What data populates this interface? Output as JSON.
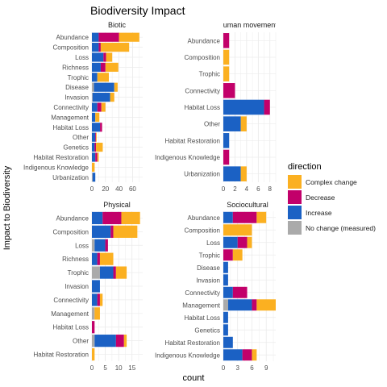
{
  "title": "Biodiversity Impact",
  "xlabel": "count",
  "ylabel": "Impact to Biodiversity",
  "legend": {
    "title": "direction",
    "items": [
      {
        "key": "complex",
        "label": "Complex change",
        "color": "#fbb021"
      },
      {
        "key": "decrease",
        "label": "Decrease",
        "color": "#c2006a"
      },
      {
        "key": "increase",
        "label": "Increase",
        "color": "#1b61c4"
      },
      {
        "key": "nochange",
        "label": "No change (measured)",
        "color": "#aaaaaa"
      }
    ]
  },
  "chart_data": [
    {
      "type": "bar",
      "orientation": "horizontal",
      "stacked": true,
      "title": "Biotic",
      "xlim": [
        0,
        75
      ],
      "xticks": [
        0,
        20,
        40,
        60
      ],
      "categories": [
        "Urbanization",
        "Indigenous Knowledge",
        "Habitat Restoration",
        "Genetics",
        "Other",
        "Habitat Loss",
        "Management",
        "Connectivity",
        "Invasion",
        "Disease",
        "Trophic",
        "Richness",
        "Loss",
        "Composition",
        "Abundance"
      ],
      "series": [
        {
          "name": "No change (measured)",
          "values": [
            1,
            0,
            0,
            0,
            0,
            0,
            0,
            0,
            1,
            3,
            0,
            0,
            0,
            0,
            0
          ]
        },
        {
          "name": "Increase",
          "values": [
            4,
            0,
            5,
            4,
            5,
            12,
            5,
            8,
            26,
            30,
            8,
            13,
            17,
            10,
            10
          ]
        },
        {
          "name": "Decrease",
          "values": [
            0,
            0,
            3,
            2,
            1,
            3,
            0,
            6,
            0,
            0,
            0,
            7,
            4,
            3,
            30
          ]
        },
        {
          "name": "Complex change",
          "values": [
            0,
            4,
            2,
            10,
            1,
            0,
            6,
            6,
            6,
            5,
            17,
            19,
            9,
            42,
            30
          ]
        }
      ]
    },
    {
      "type": "bar",
      "orientation": "horizontal",
      "stacked": true,
      "title": "Human movement",
      "xlim": [
        0,
        9
      ],
      "xticks": [
        0,
        2,
        4,
        6,
        8
      ],
      "categories": [
        "Urbanization",
        "Indigenous Knowledge",
        "Habitat Restoration",
        "Other",
        "Habitat Loss",
        "Connectivity",
        "Trophic",
        "Composition",
        "Abundance"
      ],
      "series": [
        {
          "name": "No change (measured)",
          "values": [
            0,
            0,
            0,
            0,
            0,
            0,
            0,
            0,
            0
          ]
        },
        {
          "name": "Increase",
          "values": [
            3,
            0,
            1,
            3,
            7,
            0,
            0,
            0,
            0
          ]
        },
        {
          "name": "Decrease",
          "values": [
            0,
            1,
            0,
            0,
            1,
            2,
            0,
            0,
            1
          ]
        },
        {
          "name": "Complex change",
          "values": [
            1,
            0,
            0,
            1,
            0,
            0,
            1,
            1,
            0
          ]
        }
      ]
    },
    {
      "type": "bar",
      "orientation": "horizontal",
      "stacked": true,
      "title": "Physical",
      "xlim": [
        0,
        19
      ],
      "xticks": [
        0,
        5,
        10,
        15
      ],
      "categories": [
        "Habitat Restoration",
        "Other",
        "Habitat Loss",
        "Management",
        "Connectivity",
        "Invasion",
        "Trophic",
        "Richness",
        "Loss",
        "Composition",
        "Abundance"
      ],
      "series": [
        {
          "name": "No change (measured)",
          "values": [
            0,
            1,
            0,
            1,
            0,
            0,
            3,
            0,
            1,
            0,
            0
          ]
        },
        {
          "name": "Increase",
          "values": [
            0,
            8,
            0,
            0,
            2,
            3,
            5,
            2,
            4,
            7,
            4
          ]
        },
        {
          "name": "Decrease",
          "values": [
            0,
            3,
            1,
            0,
            1,
            0,
            1,
            1,
            1,
            1,
            7
          ]
        },
        {
          "name": "Complex change",
          "values": [
            1,
            1,
            0,
            2,
            1,
            0,
            4,
            5,
            0,
            9,
            7
          ]
        }
      ]
    },
    {
      "type": "bar",
      "orientation": "horizontal",
      "stacked": true,
      "title": "Sociocultural",
      "xlim": [
        0,
        11
      ],
      "xticks": [
        0,
        3,
        6,
        9
      ],
      "categories": [
        "Indigenous Knowledge",
        "Habitat Restoration",
        "Genetics",
        "Habitat Loss",
        "Management",
        "Connectivity",
        "Invasion",
        "Disease",
        "Trophic",
        "Loss",
        "Composition",
        "Abundance"
      ],
      "series": [
        {
          "name": "No change (measured)",
          "values": [
            0,
            0,
            0,
            0,
            1,
            0,
            0,
            0,
            0,
            0,
            0,
            0
          ]
        },
        {
          "name": "Increase",
          "values": [
            4,
            2,
            1,
            1,
            5,
            2,
            1,
            1,
            0,
            3,
            0,
            2
          ]
        },
        {
          "name": "Decrease",
          "values": [
            2,
            0,
            0,
            0,
            1,
            3,
            0,
            0,
            2,
            2,
            0,
            5
          ]
        },
        {
          "name": "Complex change",
          "values": [
            1,
            0,
            0,
            0,
            4,
            0,
            0,
            0,
            2,
            1,
            6,
            2
          ]
        }
      ]
    }
  ]
}
